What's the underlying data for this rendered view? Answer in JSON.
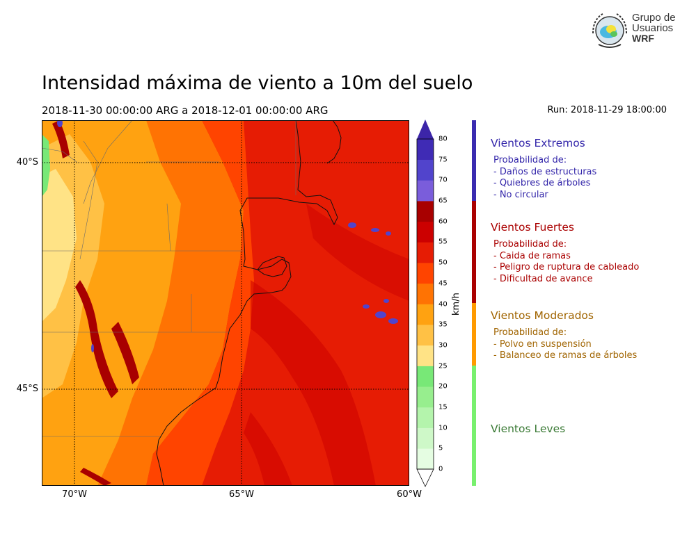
{
  "title": "Intensidad máxima de viento a 10m del suelo",
  "period": "2018-11-30 00:00:00 ARG  a  2018-12-01 00:00:00 ARG",
  "run": "Run: 2018-11-29 18:00:00",
  "logo": {
    "lines": [
      "Grupo de",
      "Usuarios",
      "WRF"
    ]
  },
  "map": {
    "region": "Patagonia norte, Argentina",
    "lat_labels": [
      "40°S",
      "45°S"
    ],
    "lon_labels": [
      "70°W",
      "65°W",
      "60°W"
    ]
  },
  "colorbar": {
    "unit_label": "km/h",
    "ticks": [
      "0",
      "5",
      "10",
      "15",
      "20",
      "25",
      "30",
      "35",
      "40",
      "45",
      "50",
      "55",
      "60",
      "65",
      "70",
      "75",
      "80"
    ],
    "colors": [
      "#e5fde2",
      "#cef8c8",
      "#b4f4ac",
      "#97ee8e",
      "#78e877",
      "#ffe386",
      "#ffc145",
      "#ffa211",
      "#ff7303",
      "#ff4400",
      "#e61c04",
      "#cc0000",
      "#a80000",
      "#7a5ddb",
      "#5144cc",
      "#3f2bb5"
    ],
    "extend_low": "#ffffff",
    "extend_high": "#3c25a8"
  },
  "categories": [
    {
      "title": "Vientos Extremos",
      "color": "#3326aa",
      "bar_color": "#3a2bb0",
      "lines": [
        "Probabilidad de:",
        "- Daños de estructuras",
        "- Quiebres de árboles",
        "- No circular"
      ]
    },
    {
      "title": "Vientos Fuertes",
      "color": "#aa0000",
      "bar_color": "#aa0000",
      "lines": [
        "Probabilidad de:",
        "- Caida de ramas",
        "- Peligro de ruptura de cableado",
        "- Dificultad de avance"
      ]
    },
    {
      "title": "Vientos Moderados",
      "color": "#a06400",
      "bar_color": "#ff9a00",
      "lines": [
        "Probabilidad de:",
        "- Polvo en suspensión",
        "- Balanceo de ramas de árboles"
      ]
    },
    {
      "title": "Vientos Leves",
      "color": "#3a7a35",
      "bar_color": "#78f06e",
      "lines": []
    }
  ]
}
